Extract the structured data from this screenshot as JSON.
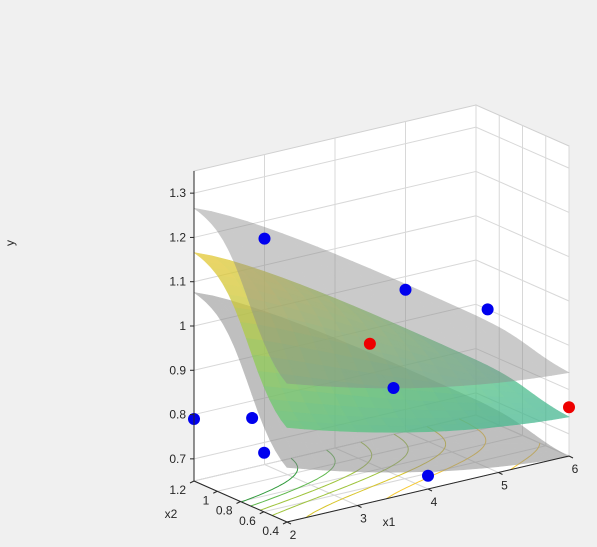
{
  "chart_data": {
    "type": "surface3d",
    "title": "",
    "xlabel": "x1",
    "ylabel": "x2",
    "zlabel": "y",
    "xlim": [
      2,
      6
    ],
    "ylim": [
      0.4,
      1.2
    ],
    "zlim": [
      0.65,
      1.35
    ],
    "x_ticks": [
      "2",
      "3",
      "4",
      "5",
      "6"
    ],
    "y_ticks": [
      "0.4",
      "0.6",
      "0.8",
      "1",
      "1.2"
    ],
    "z_ticks": [
      "0.7",
      "0.8",
      "0.9",
      "1",
      "1.1",
      "1.2",
      "1.3"
    ],
    "grid": true,
    "surfaces": [
      {
        "name": "",
        "role": "upper bound",
        "color": "#8c8c8c",
        "opacity": 0.55
      },
      {
        "name": "",
        "role": "fitted response",
        "colormap": "parula",
        "opacity": 0.75
      },
      {
        "name": "",
        "role": "lower bound",
        "color": "#8c8c8c",
        "opacity": 0.55
      }
    ],
    "contour_colormap": [
      "#f7c932",
      "#d8c52a",
      "#9fc43d",
      "#5fb84c",
      "#2f9a3a"
    ],
    "points_blue": [
      {
        "x": 2.0,
        "y": 1.2,
        "z": 0.79
      },
      {
        "x": 2.0,
        "y": 0.7,
        "z": 0.85
      },
      {
        "x": 2.5,
        "y": 0.9,
        "z": 0.73
      },
      {
        "x": 3.0,
        "y": 1.2,
        "z": 1.16
      },
      {
        "x": 4.0,
        "y": 0.4,
        "z": 0.68
      },
      {
        "x": 4.5,
        "y": 1.0,
        "z": 0.79
      },
      {
        "x": 5.0,
        "y": 1.2,
        "z": 0.97
      },
      {
        "x": 6.0,
        "y": 1.1,
        "z": 0.9
      }
    ],
    "points_red": [
      {
        "x": 4.0,
        "y": 0.9,
        "z": 0.92
      },
      {
        "x": 6.0,
        "y": 0.4,
        "z": 0.76
      }
    ],
    "marker_colors": {
      "blue": "#0000ee",
      "red": "#ee0000"
    }
  }
}
